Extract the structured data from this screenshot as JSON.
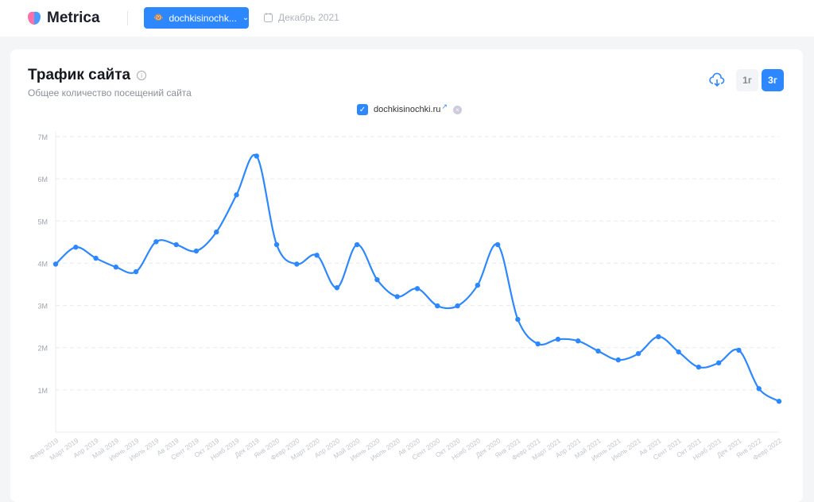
{
  "header": {
    "logo": "Metrica",
    "site": "dochkisinochk...",
    "date": "Декабрь 2021"
  },
  "card": {
    "title": "Трафик сайта",
    "subtitle": "Общее количество посещений сайта",
    "legend": "dochkisinochki.ru",
    "ranges": [
      "1г",
      "3г"
    ],
    "active_range": "3г"
  },
  "colors": {
    "accent": "#2d88ff"
  },
  "chart_data": {
    "type": "line",
    "title": "Трафик сайта",
    "ylabel": "",
    "xlabel": "",
    "ylim": [
      0,
      7000000
    ],
    "yticks": [
      "1M",
      "2M",
      "3M",
      "4M",
      "5M",
      "6M",
      "7M"
    ],
    "categories": [
      "Февр 2019",
      "Март 2019",
      "Апр 2019",
      "Май 2019",
      "Июнь 2019",
      "Июль 2019",
      "Ав 2019",
      "Сент 2019",
      "Окт 2019",
      "Нояб 2019",
      "Дек 2019",
      "Янв 2020",
      "Февр 2020",
      "Март 2020",
      "Апр 2020",
      "Май 2020",
      "Июнь 2020",
      "Июль 2020",
      "Ав 2020",
      "Сент 2020",
      "Окт 2020",
      "Нояб 2020",
      "Дек 2020",
      "Янв 2021",
      "Февр 2021",
      "Март 2021",
      "Апр 2021",
      "Май 2021",
      "Июнь 2021",
      "Июль 2021",
      "Ав 2021",
      "Сент 2021",
      "Окт 2021",
      "Нояб 2021",
      "Дек 2021",
      "Янв 2022",
      "Февр 2022"
    ],
    "series": [
      {
        "name": "dochkisinochki.ru",
        "values": [
          3980000,
          4380000,
          4120000,
          3910000,
          3800000,
          4510000,
          4440000,
          4290000,
          4740000,
          5620000,
          6540000,
          4440000,
          3980000,
          4190000,
          3420000,
          4440000,
          3610000,
          3210000,
          3400000,
          2990000,
          2990000,
          3480000,
          4440000,
          2670000,
          2090000,
          2200000,
          2160000,
          1920000,
          1710000,
          1860000,
          2260000,
          1900000,
          1540000,
          1640000,
          1940000,
          1030000,
          730000
        ]
      }
    ]
  }
}
